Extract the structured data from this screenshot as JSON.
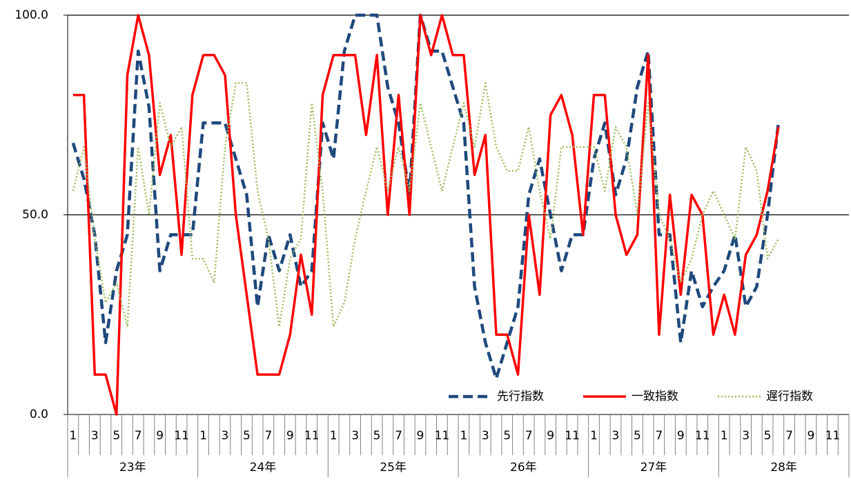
{
  "chart_data": {
    "type": "line",
    "categories": [
      "1",
      null,
      "3",
      null,
      "5",
      null,
      "7",
      null,
      "9",
      null,
      "11",
      null,
      "1",
      null,
      "3",
      null,
      "5",
      null,
      "7",
      null,
      "9",
      null,
      "11",
      null,
      "1",
      null,
      "3",
      null,
      "5",
      null,
      "7",
      null,
      "9",
      null,
      "11",
      null,
      "1",
      null,
      "3",
      null,
      "5",
      null,
      "7",
      null,
      "9",
      null,
      "11",
      null,
      "1",
      null,
      "3",
      null,
      "5",
      null,
      "7",
      null,
      "9",
      null,
      "11",
      null,
      "1",
      null,
      "3",
      null,
      "5",
      null,
      "7",
      null,
      "9",
      null,
      "11",
      null
    ],
    "years": [
      "23年",
      "24年",
      "25年",
      "26年",
      "27年",
      "28年"
    ],
    "ylim": [
      0,
      100
    ],
    "yticks": [
      {
        "value": 0,
        "label": "0.0"
      },
      {
        "value": 50,
        "label": "50.0"
      },
      {
        "value": 100,
        "label": "100.0"
      }
    ],
    "grid": true,
    "legend": "lower right",
    "series": [
      {
        "name": "先行指数",
        "color": "#1f497d",
        "style": "dashed",
        "values": [
          68,
          59,
          45,
          18,
          36,
          45,
          91,
          77,
          36,
          45,
          45,
          45,
          73,
          73,
          73,
          64,
          55,
          27,
          45,
          36,
          45,
          32,
          36,
          73,
          64,
          91,
          100,
          100,
          100,
          82,
          73,
          55,
          100,
          91,
          91,
          82,
          73,
          32,
          18,
          9,
          18,
          27,
          55,
          64,
          50,
          36,
          45,
          45,
          64,
          73,
          55,
          64,
          82,
          91,
          45,
          45,
          18,
          36,
          27,
          32,
          36,
          45,
          27,
          32,
          50,
          73,
          null,
          null,
          null,
          null,
          null,
          null
        ]
      },
      {
        "name": "一致指数",
        "color": "#ff0000",
        "style": "solid",
        "values": [
          80,
          80,
          10,
          10,
          0,
          85,
          100,
          90,
          60,
          70,
          40,
          80,
          90,
          90,
          85,
          50,
          30,
          10,
          10,
          10,
          20,
          40,
          25,
          80,
          90,
          90,
          90,
          70,
          90,
          50,
          80,
          50,
          100,
          90,
          100,
          90,
          90,
          60,
          70,
          20,
          20,
          10,
          50,
          30,
          75,
          80,
          70,
          45,
          80,
          80,
          50,
          40,
          45,
          90,
          20,
          55,
          30,
          55,
          50,
          20,
          30,
          20,
          40,
          45,
          56,
          72,
          null,
          null,
          null,
          null,
          null,
          null
        ]
      },
      {
        "name": "遅行指数",
        "color": "#9bbb59",
        "style": "dotted",
        "values": [
          56,
          67,
          44,
          28,
          33,
          22,
          67,
          50,
          78,
          67,
          72,
          39,
          39,
          33,
          67,
          83,
          83,
          56,
          44,
          22,
          39,
          44,
          78,
          56,
          22,
          28,
          44,
          56,
          67,
          56,
          67,
          56,
          78,
          67,
          56,
          67,
          78,
          67,
          83,
          67,
          61,
          61,
          72,
          56,
          44,
          67,
          67,
          67,
          67,
          56,
          72,
          67,
          50,
          78,
          50,
          44,
          33,
          39,
          50,
          56,
          50,
          44,
          67,
          61,
          39,
          44,
          null,
          null,
          null,
          null,
          null,
          null
        ]
      }
    ]
  }
}
